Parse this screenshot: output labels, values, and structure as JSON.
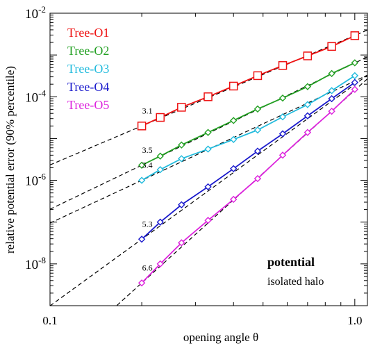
{
  "chart_data": {
    "type": "line",
    "xlabel": "opening angle  θ",
    "ylabel": "relative potential error (90% percentile)",
    "xscale": "log",
    "yscale": "log",
    "xlim": [
      0.1,
      1.1
    ],
    "ylim": [
      1e-09,
      0.01
    ],
    "x_ticks": [
      {
        "value": 0.1,
        "label": "0.1"
      },
      {
        "value": 1.0,
        "label": "1.0"
      }
    ],
    "y_ticks": [
      {
        "value": 1e-08,
        "base": "10",
        "exp": "-8"
      },
      {
        "value": 1e-06,
        "base": "10",
        "exp": "-6"
      },
      {
        "value": 0.0001,
        "base": "10",
        "exp": "-4"
      },
      {
        "value": 0.01,
        "base": "10",
        "exp": "-2"
      }
    ],
    "grid": false,
    "legend_position": "top-left",
    "x": [
      0.2,
      0.23,
      0.27,
      0.33,
      0.4,
      0.48,
      0.58,
      0.7,
      0.84,
      1.0
    ],
    "series": [
      {
        "name": "Tree-O1",
        "color": "#ee1111",
        "marker": "square",
        "values": [
          2e-05,
          3.2e-05,
          5.6e-05,
          0.0001,
          0.00018,
          0.00032,
          0.00056,
          0.00095,
          0.0016,
          0.0029
        ]
      },
      {
        "name": "Tree-O2",
        "color": "#22a022",
        "marker": "diamond",
        "values": [
          2.3e-06,
          3.8e-06,
          7e-06,
          1.4e-05,
          2.7e-05,
          5.1e-05,
          9.3e-05,
          0.000175,
          0.00036,
          0.00065
        ]
      },
      {
        "name": "Tree-O3",
        "color": "#22bbdd",
        "marker": "diamond",
        "values": [
          1e-06,
          1.8e-06,
          3.3e-06,
          5.6e-06,
          9.5e-06,
          1.6e-05,
          3.3e-05,
          6.5e-05,
          0.00014,
          0.00032
        ]
      },
      {
        "name": "Tree-O4",
        "color": "#1a1acc",
        "marker": "diamond",
        "values": [
          3.9e-08,
          1e-07,
          2.6e-07,
          7e-07,
          1.9e-06,
          5e-06,
          1.3e-05,
          3.5e-05,
          9e-05,
          0.00022
        ]
      },
      {
        "name": "Tree-O5",
        "color": "#dd22dd",
        "marker": "diamond",
        "values": [
          3.5e-09,
          1e-08,
          3.2e-08,
          1.1e-07,
          3.5e-07,
          1.1e-06,
          4e-06,
          1.4e-05,
          4.5e-05,
          0.00015
        ]
      }
    ],
    "fit_lines": [
      {
        "label": "3.1",
        "x_ref": 0.2,
        "y_ref": 2e-05,
        "slope": 3.1,
        "x_range": [
          0.1,
          1.1
        ]
      },
      {
        "label": "3.5",
        "x_ref": 0.2,
        "y_ref": 2.3e-06,
        "slope": 3.5,
        "x_range": [
          0.1,
          1.1
        ]
      },
      {
        "label": "3.4",
        "x_ref": 0.2,
        "y_ref": 1e-06,
        "slope": 3.4,
        "x_range": [
          0.1,
          1.1
        ]
      },
      {
        "label": "5.3",
        "x_ref": 0.2,
        "y_ref": 3.9e-08,
        "slope": 5.3,
        "x_range": [
          0.1,
          1.1
        ]
      },
      {
        "label": "6.6",
        "x_ref": 0.2,
        "y_ref": 3.5e-09,
        "slope": 6.6,
        "x_range": [
          0.1,
          1.1
        ]
      }
    ],
    "annotations": {
      "title": "potential",
      "subtitle": "isolated halo"
    }
  }
}
